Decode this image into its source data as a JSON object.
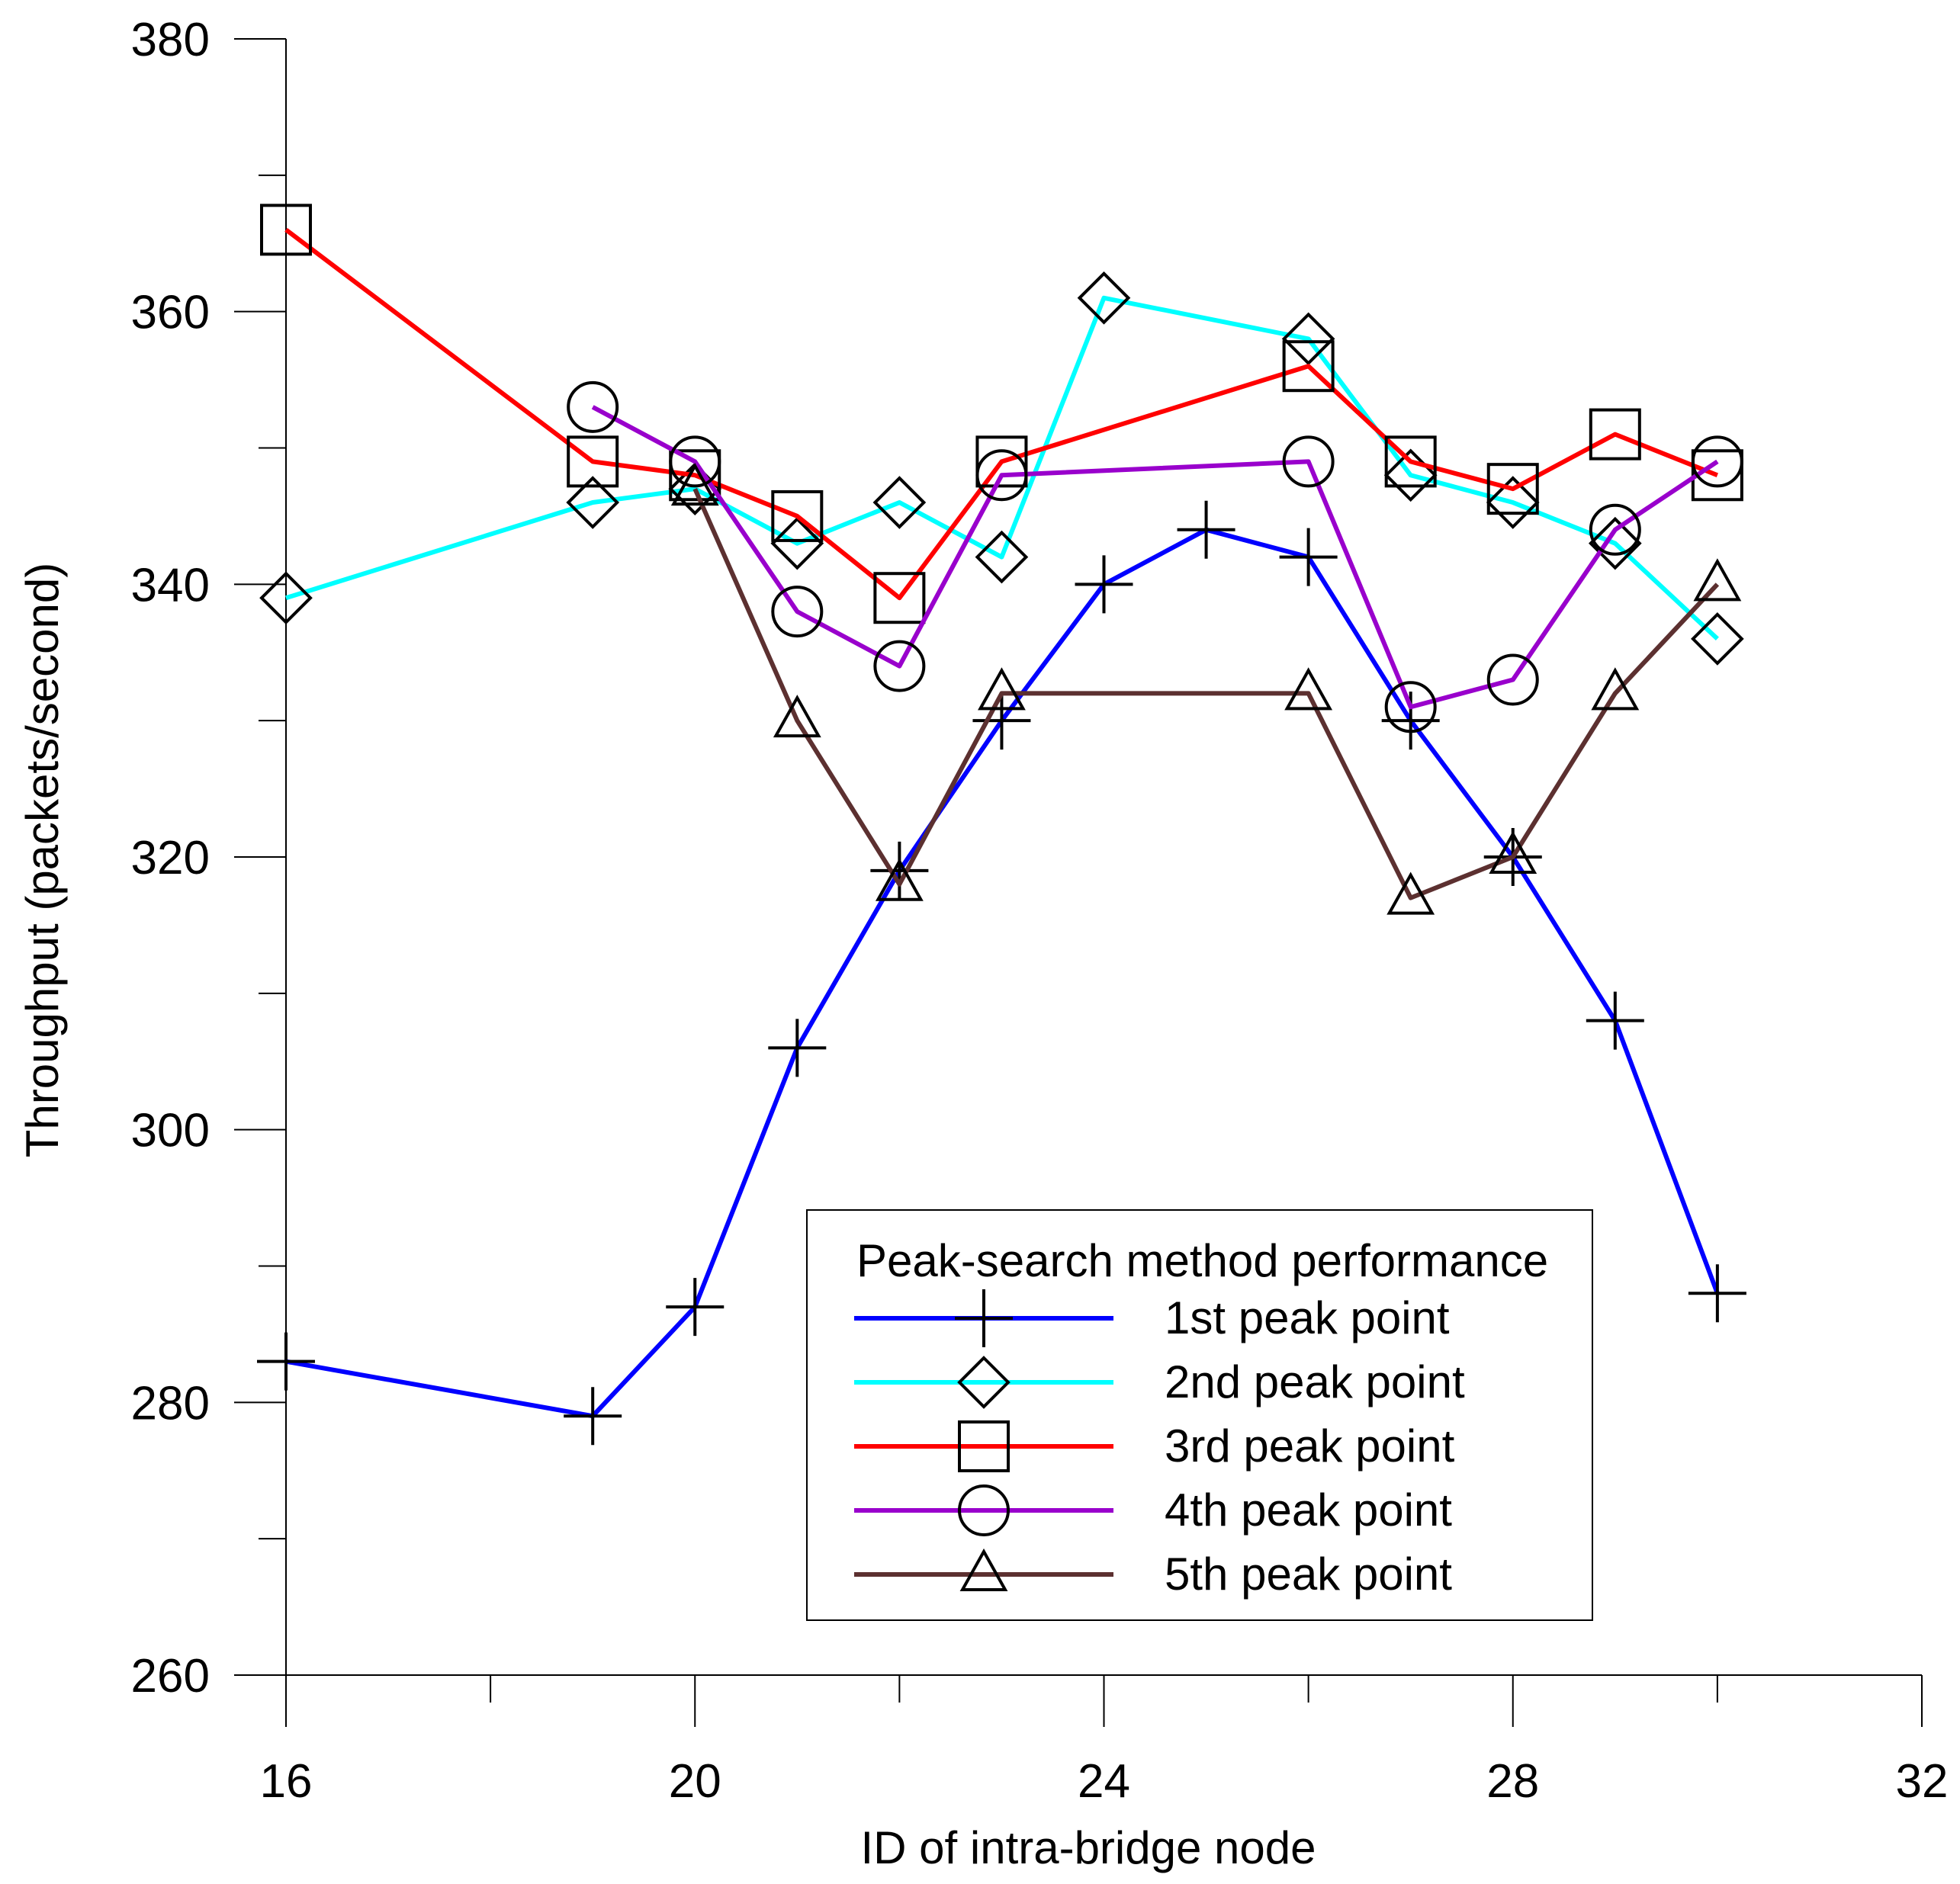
{
  "chart_data": {
    "type": "line",
    "title": "",
    "xlabel": "ID of intra-bridge node",
    "ylabel": "Throughput (packets/second)",
    "xlim": [
      16,
      32
    ],
    "ylim": [
      260,
      380
    ],
    "x_ticks": [
      16,
      20,
      24,
      28,
      32
    ],
    "x_minor_ticks": [
      18,
      22,
      26,
      30
    ],
    "y_ticks": [
      260,
      280,
      300,
      320,
      340,
      360,
      380
    ],
    "y_minor_ticks": [
      270,
      290,
      310,
      330,
      350,
      370
    ],
    "grid": false,
    "legend": {
      "title": "Peak-search method performance",
      "position": "lower-right"
    },
    "series": [
      {
        "name": "1st peak point",
        "color": "#0000ff",
        "marker": "plus",
        "x": [
          16,
          19,
          20,
          21,
          22,
          23,
          24,
          25,
          26,
          27,
          28,
          29,
          30
        ],
        "y": [
          283,
          279,
          287,
          306,
          319,
          330,
          340,
          344,
          342,
          330,
          320,
          308,
          288
        ]
      },
      {
        "name": "2nd peak point",
        "color": "#00ffff",
        "marker": "diamond",
        "x": [
          16,
          19,
          20,
          21,
          22,
          23,
          24,
          26,
          27,
          28,
          29,
          30
        ],
        "y": [
          339,
          346,
          347,
          343,
          346,
          342,
          361,
          358,
          348,
          346,
          343,
          336
        ]
      },
      {
        "name": "3rd peak point",
        "color": "#ff0000",
        "marker": "square",
        "x": [
          16,
          19,
          20,
          21,
          22,
          23,
          26,
          27,
          28,
          29,
          30
        ],
        "y": [
          366,
          349,
          348,
          345,
          339,
          349,
          356,
          349,
          347,
          351,
          348
        ]
      },
      {
        "name": "4th peak point",
        "color": "#9900cc",
        "marker": "circle",
        "x": [
          19,
          20,
          21,
          22,
          23,
          26,
          27,
          28,
          29,
          30
        ],
        "y": [
          353,
          349,
          338,
          334,
          348,
          349,
          331,
          333,
          344,
          349
        ]
      },
      {
        "name": "5th peak point",
        "color": "#5c3030",
        "marker": "triangle",
        "x": [
          20,
          21,
          22,
          23,
          26,
          27,
          28,
          29,
          30
        ],
        "y": [
          347,
          330,
          318,
          332,
          332,
          317,
          320,
          332,
          340
        ]
      }
    ]
  }
}
